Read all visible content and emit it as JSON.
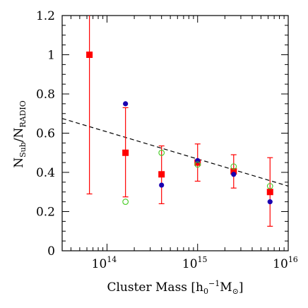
{
  "chart_data": {
    "type": "scatter",
    "x_scale": "log",
    "xlim": [
      32000000000000.0,
      1e+16
    ],
    "ylim": [
      0,
      1.2
    ],
    "xlabel": {
      "text": "Cluster Mass [h",
      "sub": "0",
      "sup": "−1",
      "tail": "M",
      "tail_sub": "⊙",
      "close": "]"
    },
    "ylabel": {
      "n1": "N",
      "sub1": "Sub",
      "slash": "/N",
      "sub2": "RADIO"
    },
    "y_ticks": [
      {
        "value": 0,
        "label": "0"
      },
      {
        "value": 0.2,
        "label": "0.2"
      },
      {
        "value": 0.4,
        "label": "0.4"
      },
      {
        "value": 0.6,
        "label": "0.6"
      },
      {
        "value": 0.8,
        "label": "0.8"
      },
      {
        "value": 1.0,
        "label": "1"
      },
      {
        "value": 1.2,
        "label": "1.2"
      }
    ],
    "x_ticks": [
      {
        "value": 100000000000000.0,
        "base": "10",
        "exp": "14"
      },
      {
        "value": 1000000000000000.0,
        "base": "10",
        "exp": "15"
      },
      {
        "value": 1e+16,
        "base": "10",
        "exp": "16"
      }
    ],
    "series": [
      {
        "marker": "filled-square",
        "color": "#ff0000",
        "points": [
          {
            "x": 64000000000000.0,
            "y": 1.0,
            "y_low": 0.29,
            "y_high": 1.2
          },
          {
            "x": 160000000000000.0,
            "y": 0.5,
            "y_low": 0.275,
            "y_high": 0.73
          },
          {
            "x": 400000000000000.0,
            "y": 0.39,
            "y_low": 0.24,
            "y_high": 0.535
          },
          {
            "x": 1000000000000000.0,
            "y": 0.45,
            "y_low": 0.355,
            "y_high": 0.545
          },
          {
            "x": 2500000000000000.0,
            "y": 0.405,
            "y_low": 0.32,
            "y_high": 0.49
          },
          {
            "x": 6300000000000000.0,
            "y": 0.3,
            "y_low": 0.125,
            "y_high": 0.475
          }
        ]
      },
      {
        "marker": "filled-circle",
        "color": "#1a00b0",
        "points": [
          {
            "x": 160000000000000.0,
            "y": 0.75
          },
          {
            "x": 400000000000000.0,
            "y": 0.335
          },
          {
            "x": 1000000000000000.0,
            "y": 0.46
          },
          {
            "x": 2500000000000000.0,
            "y": 0.39
          },
          {
            "x": 6300000000000000.0,
            "y": 0.25
          }
        ]
      },
      {
        "marker": "open-circle",
        "color": "#44cc22",
        "points": [
          {
            "x": 160000000000000.0,
            "y": 0.25
          },
          {
            "x": 400000000000000.0,
            "y": 0.5
          },
          {
            "x": 1000000000000000.0,
            "y": 0.44
          },
          {
            "x": 2500000000000000.0,
            "y": 0.43
          },
          {
            "x": 6300000000000000.0,
            "y": 0.33
          }
        ]
      }
    ],
    "fit_line": {
      "style": "dashed",
      "color": "#000000",
      "x": [
        32000000000000.0,
        1e+16
      ],
      "y": [
        0.675,
        0.33
      ]
    }
  }
}
